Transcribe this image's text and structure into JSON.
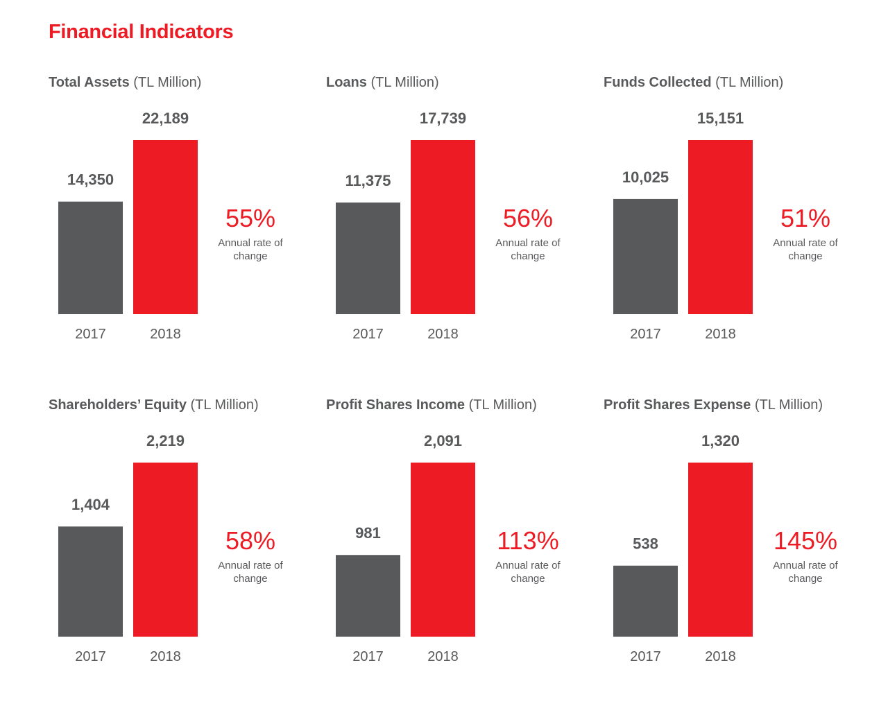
{
  "page": {
    "title": "Financial Indicators"
  },
  "colors": {
    "accent": "#ed1c24",
    "gray_bar": "#58595b",
    "text": "#58595b"
  },
  "chart_data": [
    {
      "type": "bar",
      "title": "Total Assets",
      "unit": "(TL Million)",
      "categories": [
        "2017",
        "2018"
      ],
      "values": [
        14350,
        22189
      ],
      "value_labels": [
        "14,350",
        "22,189"
      ],
      "bar_colors": [
        "#58595b",
        "#ed1c24"
      ],
      "rate": "55%",
      "rate_label": "Annual rate of change"
    },
    {
      "type": "bar",
      "title": "Loans",
      "unit": "(TL Million)",
      "categories": [
        "2017",
        "2018"
      ],
      "values": [
        11375,
        17739
      ],
      "value_labels": [
        "11,375",
        "17,739"
      ],
      "bar_colors": [
        "#58595b",
        "#ed1c24"
      ],
      "rate": "56%",
      "rate_label": "Annual rate of change"
    },
    {
      "type": "bar",
      "title": "Funds Collected",
      "unit": "(TL Million)",
      "categories": [
        "2017",
        "2018"
      ],
      "values": [
        10025,
        15151
      ],
      "value_labels": [
        "10,025",
        "15,151"
      ],
      "bar_colors": [
        "#58595b",
        "#ed1c24"
      ],
      "rate": "51%",
      "rate_label": "Annual rate of change"
    },
    {
      "type": "bar",
      "title": "Shareholders’ Equity",
      "unit": "(TL Million)",
      "categories": [
        "2017",
        "2018"
      ],
      "values": [
        1404,
        2219
      ],
      "value_labels": [
        "1,404",
        "2,219"
      ],
      "bar_colors": [
        "#58595b",
        "#ed1c24"
      ],
      "rate": "58%",
      "rate_label": "Annual rate of change"
    },
    {
      "type": "bar",
      "title": "Profit Shares Income",
      "unit": "(TL Million)",
      "categories": [
        "2017",
        "2018"
      ],
      "values": [
        981,
        2091
      ],
      "value_labels": [
        "981",
        "2,091"
      ],
      "bar_colors": [
        "#58595b",
        "#ed1c24"
      ],
      "rate": "113%",
      "rate_label": "Annual rate of change"
    },
    {
      "type": "bar",
      "title": "Profit Shares Expense",
      "unit": "(TL Million)",
      "categories": [
        "2017",
        "2018"
      ],
      "values": [
        538,
        1320
      ],
      "value_labels": [
        "538",
        "1,320"
      ],
      "bar_colors": [
        "#58595b",
        "#ed1c24"
      ],
      "rate": "145%",
      "rate_label": "Annual rate of change"
    }
  ]
}
